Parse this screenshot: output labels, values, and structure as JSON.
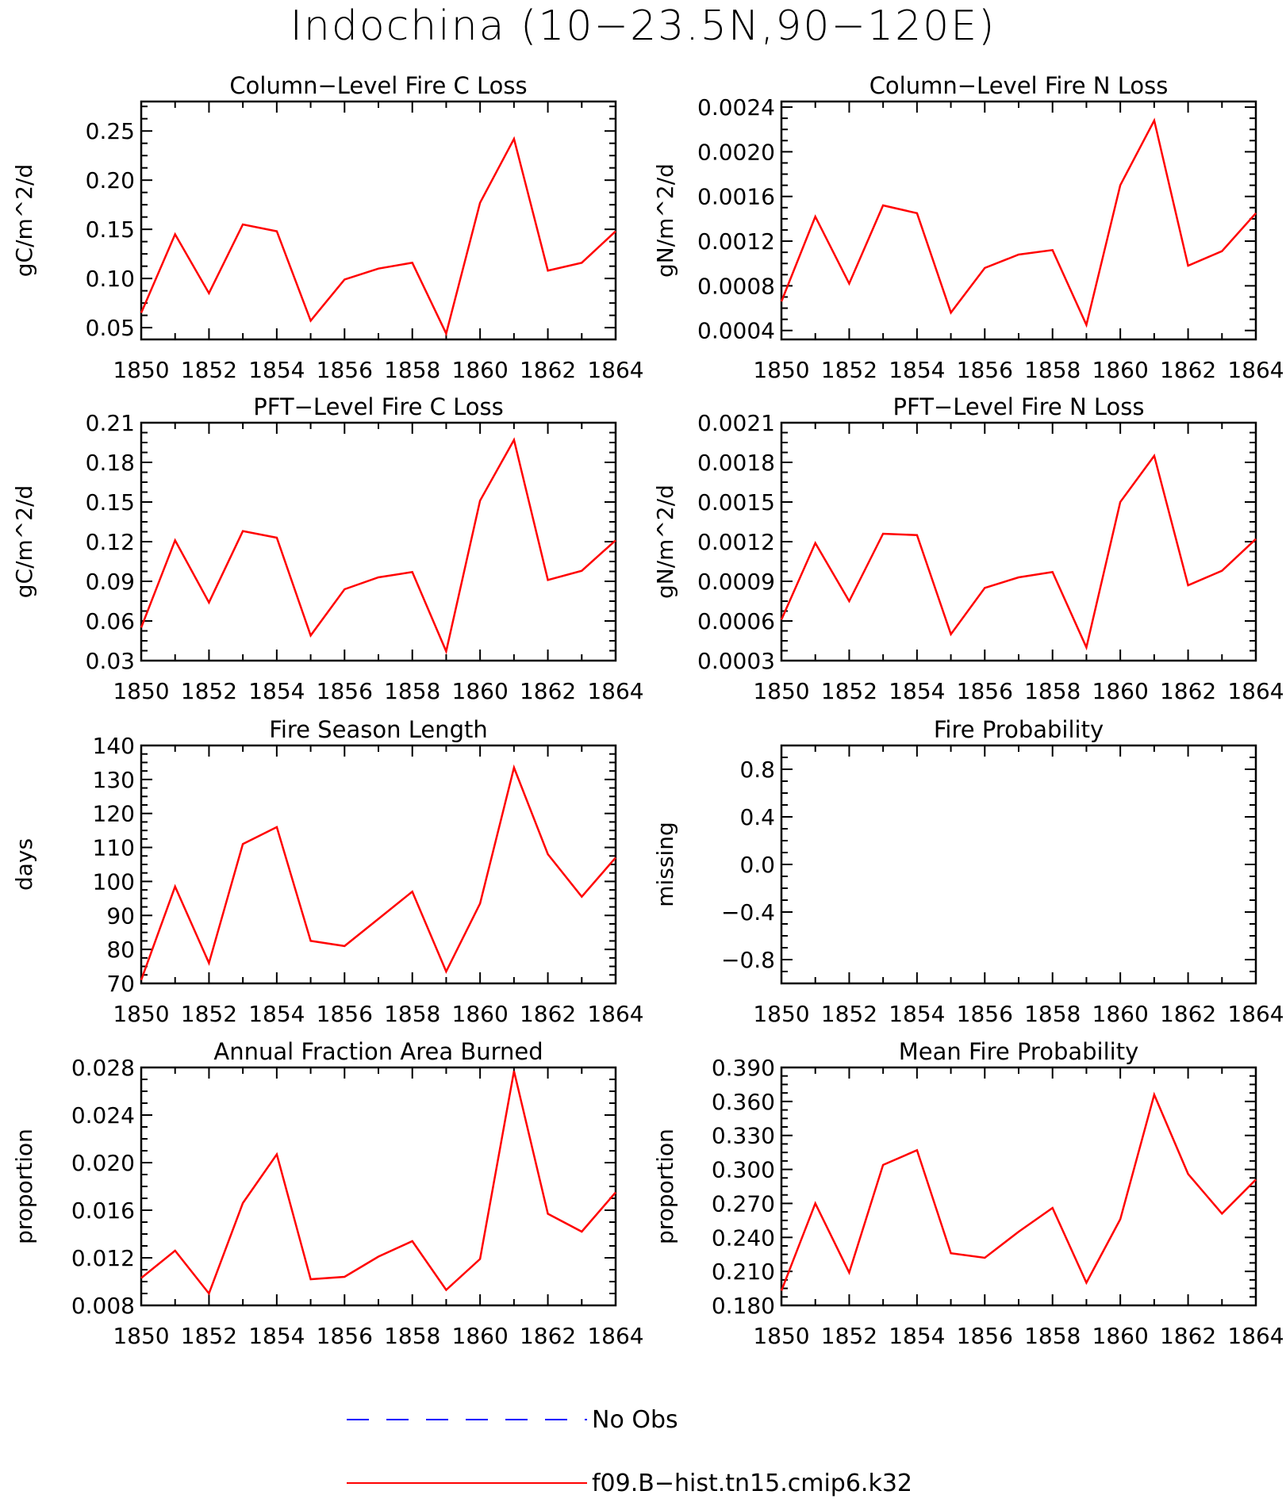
{
  "figure": {
    "title": "Indochina (10−23.5N,90−120E)"
  },
  "colors": {
    "model": "#ff0000",
    "obs": "#0000ff",
    "axis": "#000000"
  },
  "chart_data": [
    {
      "type": "line",
      "title": "Column−Level Fire C Loss",
      "ylabel": "gC/m^2/d",
      "xlim": [
        1850,
        1864
      ],
      "ylim": [
        0.038,
        0.28
      ],
      "xticks": [
        1850,
        1852,
        1854,
        1856,
        1858,
        1860,
        1862,
        1864
      ],
      "xtick_labels": [
        "1850",
        "1852",
        "1854",
        "1856",
        "1858",
        "1860",
        "1862",
        "1864"
      ],
      "yticks": [
        0.05,
        0.1,
        0.15,
        0.2,
        0.25
      ],
      "ytick_labels": [
        "0.05",
        "0.10",
        "0.15",
        "0.20",
        "0.25"
      ],
      "series": [
        {
          "key": "model",
          "x": [
            1850,
            1851,
            1852,
            1853,
            1854,
            1855,
            1856,
            1857,
            1858,
            1859,
            1860,
            1861,
            1862,
            1863,
            1864
          ],
          "values": [
            0.065,
            0.145,
            0.085,
            0.155,
            0.148,
            0.057,
            0.099,
            0.11,
            0.116,
            0.044,
            0.177,
            0.242,
            0.108,
            0.116,
            0.148
          ]
        }
      ]
    },
    {
      "type": "line",
      "title": "Column−Level Fire N Loss",
      "ylabel": "gN/m^2/d",
      "xlim": [
        1850,
        1864
      ],
      "ylim": [
        0.00032,
        0.00245
      ],
      "xticks": [
        1850,
        1852,
        1854,
        1856,
        1858,
        1860,
        1862,
        1864
      ],
      "xtick_labels": [
        "1850",
        "1852",
        "1854",
        "1856",
        "1858",
        "1860",
        "1862",
        "1864"
      ],
      "yticks": [
        0.0004,
        0.0008,
        0.0012,
        0.0016,
        0.002,
        0.0024
      ],
      "ytick_labels": [
        "0.0004",
        "0.0008",
        "0.0012",
        "0.0016",
        "0.0020",
        "0.0024"
      ],
      "series": [
        {
          "key": "model",
          "x": [
            1850,
            1851,
            1852,
            1853,
            1854,
            1855,
            1856,
            1857,
            1858,
            1859,
            1860,
            1861,
            1862,
            1863,
            1864
          ],
          "values": [
            0.00066,
            0.00142,
            0.00082,
            0.00152,
            0.00145,
            0.00056,
            0.00096,
            0.00108,
            0.00112,
            0.00045,
            0.0017,
            0.00228,
            0.00098,
            0.00111,
            0.00145
          ]
        }
      ]
    },
    {
      "type": "line",
      "title": "PFT−Level Fire C Loss",
      "ylabel": "gC/m^2/d",
      "xlim": [
        1850,
        1864
      ],
      "ylim": [
        0.03,
        0.21
      ],
      "xticks": [
        1850,
        1852,
        1854,
        1856,
        1858,
        1860,
        1862,
        1864
      ],
      "xtick_labels": [
        "1850",
        "1852",
        "1854",
        "1856",
        "1858",
        "1860",
        "1862",
        "1864"
      ],
      "yticks": [
        0.03,
        0.06,
        0.09,
        0.12,
        0.15,
        0.18,
        0.21
      ],
      "ytick_labels": [
        "0.03",
        "0.06",
        "0.09",
        "0.12",
        "0.15",
        "0.18",
        "0.21"
      ],
      "series": [
        {
          "key": "model",
          "x": [
            1850,
            1851,
            1852,
            1853,
            1854,
            1855,
            1856,
            1857,
            1858,
            1859,
            1860,
            1861,
            1862,
            1863,
            1864
          ],
          "values": [
            0.055,
            0.121,
            0.074,
            0.128,
            0.123,
            0.049,
            0.084,
            0.093,
            0.097,
            0.037,
            0.151,
            0.197,
            0.091,
            0.098,
            0.121
          ]
        }
      ]
    },
    {
      "type": "line",
      "title": "PFT−Level Fire N Loss",
      "ylabel": "gN/m^2/d",
      "xlim": [
        1850,
        1864
      ],
      "ylim": [
        0.0003,
        0.0021
      ],
      "xticks": [
        1850,
        1852,
        1854,
        1856,
        1858,
        1860,
        1862,
        1864
      ],
      "xtick_labels": [
        "1850",
        "1852",
        "1854",
        "1856",
        "1858",
        "1860",
        "1862",
        "1864"
      ],
      "yticks": [
        0.0003,
        0.0006,
        0.0009,
        0.0012,
        0.0015,
        0.0018,
        0.0021
      ],
      "ytick_labels": [
        "0.0003",
        "0.0006",
        "0.0009",
        "0.0012",
        "0.0015",
        "0.0018",
        "0.0021"
      ],
      "series": [
        {
          "key": "model",
          "x": [
            1850,
            1851,
            1852,
            1853,
            1854,
            1855,
            1856,
            1857,
            1858,
            1859,
            1860,
            1861,
            1862,
            1863,
            1864
          ],
          "values": [
            0.00061,
            0.00119,
            0.00075,
            0.00126,
            0.00125,
            0.0005,
            0.00085,
            0.00093,
            0.00097,
            0.0004,
            0.0015,
            0.00185,
            0.00087,
            0.00098,
            0.00122
          ]
        }
      ]
    },
    {
      "type": "line",
      "title": "Fire Season Length",
      "ylabel": "days",
      "xlim": [
        1850,
        1864
      ],
      "ylim": [
        70,
        140
      ],
      "xticks": [
        1850,
        1852,
        1854,
        1856,
        1858,
        1860,
        1862,
        1864
      ],
      "xtick_labels": [
        "1850",
        "1852",
        "1854",
        "1856",
        "1858",
        "1860",
        "1862",
        "1864"
      ],
      "yticks": [
        70,
        80,
        90,
        100,
        110,
        120,
        130,
        140
      ],
      "ytick_labels": [
        "70",
        "80",
        "90",
        "100",
        "110",
        "120",
        "130",
        "140"
      ],
      "series": [
        {
          "key": "model",
          "x": [
            1850,
            1851,
            1852,
            1853,
            1854,
            1855,
            1856,
            1857,
            1858,
            1859,
            1860,
            1861,
            1862,
            1863,
            1864
          ],
          "values": [
            71,
            98.5,
            76,
            111,
            116,
            82.5,
            81,
            89,
            97,
            73.5,
            93.5,
            133.5,
            108,
            95.5,
            107
          ]
        }
      ]
    },
    {
      "type": "line",
      "title": "Fire Probability",
      "ylabel": "missing",
      "xlim": [
        1850,
        1864
      ],
      "ylim": [
        -1,
        1
      ],
      "xticks": [
        1850,
        1852,
        1854,
        1856,
        1858,
        1860,
        1862,
        1864
      ],
      "xtick_labels": [
        "1850",
        "1852",
        "1854",
        "1856",
        "1858",
        "1860",
        "1862",
        "1864"
      ],
      "yticks": [
        -0.8,
        -0.4,
        0.0,
        0.4,
        0.8
      ],
      "ytick_labels": [
        "−0.8",
        "−0.4",
        "0.0",
        "0.4",
        "0.8"
      ],
      "series": []
    },
    {
      "type": "line",
      "title": "Annual Fraction Area Burned",
      "ylabel": "proportion",
      "xlim": [
        1850,
        1864
      ],
      "ylim": [
        0.008,
        0.028
      ],
      "xticks": [
        1850,
        1852,
        1854,
        1856,
        1858,
        1860,
        1862,
        1864
      ],
      "xtick_labels": [
        "1850",
        "1852",
        "1854",
        "1856",
        "1858",
        "1860",
        "1862",
        "1864"
      ],
      "yticks": [
        0.008,
        0.012,
        0.016,
        0.02,
        0.024,
        0.028
      ],
      "ytick_labels": [
        "0.008",
        "0.012",
        "0.016",
        "0.020",
        "0.024",
        "0.028"
      ],
      "series": [
        {
          "key": "model",
          "x": [
            1850,
            1851,
            1852,
            1853,
            1854,
            1855,
            1856,
            1857,
            1858,
            1859,
            1860,
            1861,
            1862,
            1863,
            1864
          ],
          "values": [
            0.0103,
            0.0126,
            0.009,
            0.0166,
            0.0207,
            0.0102,
            0.0104,
            0.0121,
            0.0134,
            0.0093,
            0.0119,
            0.0277,
            0.0157,
            0.0142,
            0.0175
          ]
        }
      ]
    },
    {
      "type": "line",
      "title": "Mean Fire Probability",
      "ylabel": "proportion",
      "xlim": [
        1850,
        1864
      ],
      "ylim": [
        0.18,
        0.39
      ],
      "xticks": [
        1850,
        1852,
        1854,
        1856,
        1858,
        1860,
        1862,
        1864
      ],
      "xtick_labels": [
        "1850",
        "1852",
        "1854",
        "1856",
        "1858",
        "1860",
        "1862",
        "1864"
      ],
      "yticks": [
        0.18,
        0.21,
        0.24,
        0.27,
        0.3,
        0.33,
        0.36,
        0.39
      ],
      "ytick_labels": [
        "0.180",
        "0.210",
        "0.240",
        "0.270",
        "0.300",
        "0.330",
        "0.360",
        "0.390"
      ],
      "series": [
        {
          "key": "model",
          "x": [
            1850,
            1851,
            1852,
            1853,
            1854,
            1855,
            1856,
            1857,
            1858,
            1859,
            1860,
            1861,
            1862,
            1863,
            1864
          ],
          "values": [
            0.193,
            0.27,
            0.209,
            0.304,
            0.317,
            0.226,
            0.222,
            0.245,
            0.266,
            0.2,
            0.256,
            0.366,
            0.296,
            0.261,
            0.291
          ]
        }
      ]
    }
  ],
  "legend": {
    "placement": "bottom-center",
    "entries": [
      {
        "key": "obs",
        "label": "No Obs",
        "style": "dashed"
      },
      {
        "key": "model",
        "label": "f09.B−hist.tn15.cmip6.k32",
        "style": "solid"
      }
    ]
  }
}
